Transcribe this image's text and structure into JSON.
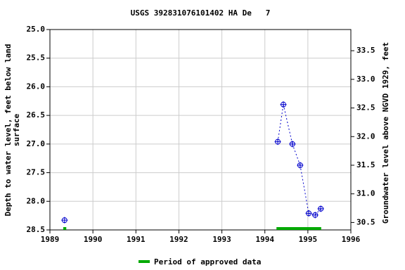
{
  "chart_data": {
    "type": "scatter",
    "title": "USGS 392831076101402 HA De   7",
    "ylabel": [
      "Depth to water level, feet below land",
      "surface"
    ],
    "y2label": "Groundwater level above NGVD 1929, feet",
    "x": [
      1989.34,
      1994.3,
      1994.43,
      1994.64,
      1994.82,
      1995.02,
      1995.17,
      1995.3
    ],
    "series": [
      {
        "color": "#0000cc",
        "values": [
          28.33,
          26.96,
          26.31,
          27.0,
          27.37,
          28.21,
          28.24,
          28.13
        ]
      }
    ],
    "xlim": [
      1989,
      1996
    ],
    "xticks": [
      1989,
      1990,
      1991,
      1992,
      1993,
      1994,
      1995,
      1996
    ],
    "ylim": [
      25.0,
      28.5
    ],
    "inverted": true,
    "yticks": [
      {
        "value": 25.0,
        "label": "25.0"
      },
      25.5,
      {
        "value": 26.0,
        "label": "26.0"
      },
      26.5,
      {
        "value": 27.0,
        "label": "27.0"
      },
      27.5,
      {
        "value": 28.0,
        "label": "28.0"
      },
      28.5
    ],
    "y2lim": [
      30.37,
      33.87
    ],
    "y2ticks": [
      30.5,
      {
        "value": 31.0,
        "label": "31.0"
      },
      31.5,
      {
        "value": 32.0,
        "label": "32.0"
      },
      32.5,
      {
        "value": 33.0,
        "label": "33.0"
      },
      33.5
    ],
    "grid": true,
    "approved_periods": [
      [
        1989.31,
        1989.38
      ],
      [
        1994.27,
        1995.31
      ]
    ],
    "approved_color": "#00aa00",
    "legend": "Period of approved data"
  }
}
